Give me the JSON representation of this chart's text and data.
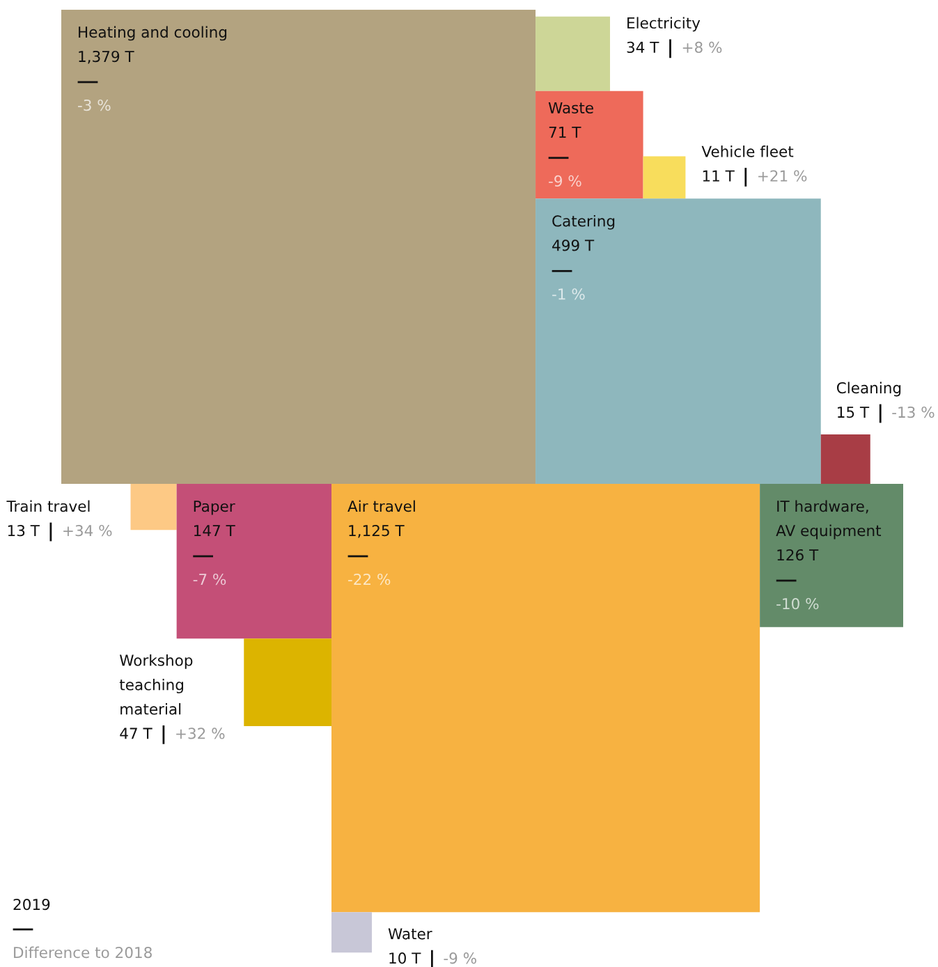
{
  "chart_data": {
    "type": "other",
    "categories": [
      "Heating and cooling",
      "Electricity",
      "Waste",
      "Vehicle fleet",
      "Catering",
      "Cleaning",
      "Train travel",
      "Paper",
      "Air travel",
      "IT hardware, AV equipment",
      "Workshop teaching material",
      "Water"
    ],
    "series": [
      {
        "name": "2019",
        "values": [
          1379,
          34,
          71,
          11,
          499,
          15,
          13,
          147,
          1125,
          126,
          47,
          10
        ],
        "value_labels": [
          "1,379 T",
          "34 T",
          "71 T",
          "11 T",
          "499 T",
          "15 T",
          "13 T",
          "147 T",
          "1,125 T",
          "126 T",
          "47 T",
          "10 T"
        ],
        "colors": [
          "#b3a380",
          "#cdd697",
          "#ee6a5a",
          "#f8dd5c",
          "#8eb7bd",
          "#a83d45",
          "#fdc985",
          "#c44f77",
          "#f7b241",
          "#638b69",
          "#dcb400",
          "#c8c7d7"
        ]
      },
      {
        "name": "Difference to 2018",
        "values": [
          -3,
          8,
          -9,
          21,
          -1,
          -13,
          34,
          -7,
          -22,
          -10,
          32,
          -9
        ],
        "value_labels": [
          "-3 %",
          "+8 %",
          "-9 %",
          "+21 %",
          "-1 %",
          "-13 %",
          "+34 %",
          "-7 %",
          "-22 %",
          "-10 %",
          "+32 %",
          "-9 %"
        ],
        "color": "#9a9a9a"
      }
    ]
  }
}
